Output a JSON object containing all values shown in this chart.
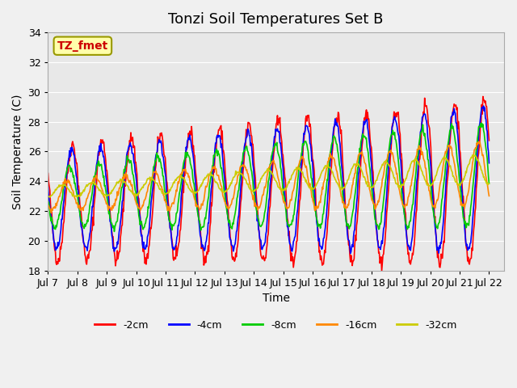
{
  "title": "Tonzi Soil Temperatures Set B",
  "xlabel": "Time",
  "ylabel": "Soil Temperature (C)",
  "annotation": "TZ_fmet",
  "ylim": [
    18,
    34
  ],
  "yticks": [
    18,
    20,
    22,
    24,
    26,
    28,
    30,
    32,
    34
  ],
  "xlim": [
    0,
    15.5
  ],
  "xtick_labels": [
    "Jul 7",
    "Jul 8",
    "Jul 9",
    "Jul 10",
    "Jul 11",
    "Jul 12",
    "Jul 13",
    "Jul 14",
    "Jul 15",
    "Jul 16",
    "Jul 17",
    "Jul 18",
    "Jul 19",
    "Jul 20",
    "Jul 21",
    "Jul 22"
  ],
  "series_colors": [
    "#ff0000",
    "#0000ff",
    "#00cc00",
    "#ff8800",
    "#cccc00"
  ],
  "series_labels": [
    "-2cm",
    "-4cm",
    "-8cm",
    "-16cm",
    "-32cm"
  ],
  "fig_bg_color": "#f0f0f0",
  "plot_bg_color": "#e8e8e8",
  "grid_color": "#ffffff",
  "line_width": 1.2,
  "title_fontsize": 13,
  "axis_fontsize": 10,
  "tick_fontsize": 9,
  "legend_fontsize": 9
}
